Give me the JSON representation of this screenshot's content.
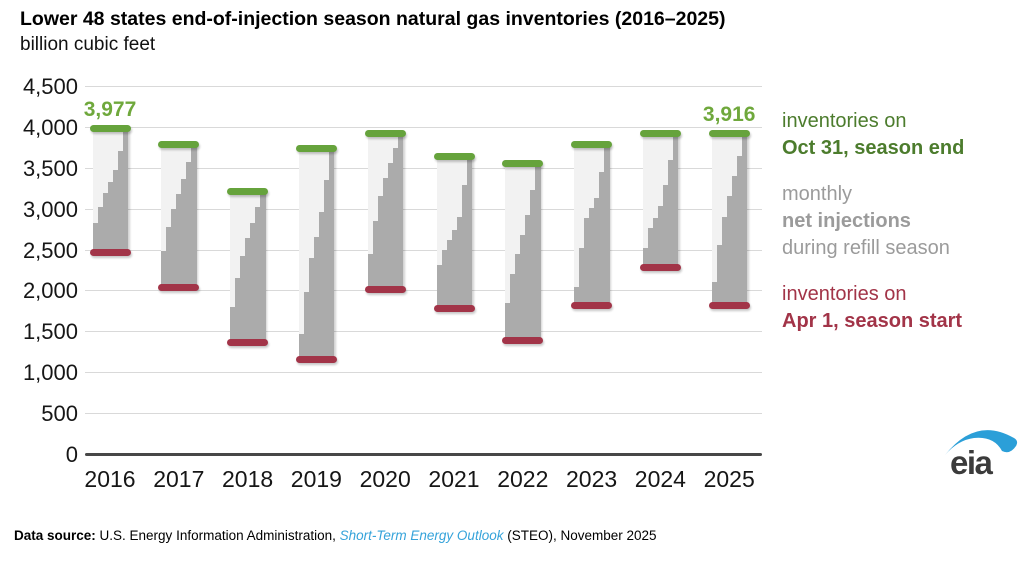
{
  "header": {
    "title": "Lower 48 states end-of-injection season natural gas inventories (2016–2025)",
    "subtitle": "billion cubic feet"
  },
  "chart_data": {
    "type": "bar",
    "title": "Lower 48 states end-of-injection season natural gas inventories (2016–2025)",
    "ylabel": "billion cubic feet",
    "ylim": [
      0,
      4500
    ],
    "ytick_labels": [
      "0",
      "500",
      "1,000",
      "1,500",
      "2,000",
      "2,500",
      "3,000",
      "3,500",
      "4,000",
      "4,500"
    ],
    "categories": [
      "2016",
      "2017",
      "2018",
      "2019",
      "2020",
      "2021",
      "2022",
      "2023",
      "2024",
      "2025"
    ],
    "series": [
      {
        "name": "inventories on Apr 1, season start",
        "color": "#a23448",
        "values": [
          2470,
          2040,
          1360,
          1160,
          2010,
          1780,
          1390,
          1820,
          2280,
          1810
        ]
      },
      {
        "name": "inventories on Oct 31, season end",
        "color": "#66a33c",
        "values": [
          3977,
          3790,
          3210,
          3740,
          3920,
          3640,
          3550,
          3790,
          3920,
          3916
        ]
      },
      {
        "name": "monthly net injections during refill season (cumulative month-end levels Apr–Oct)",
        "color": "#ababab",
        "values": [
          [
            2820,
            3025,
            3190,
            3330,
            3475,
            3700,
            3977
          ],
          [
            2480,
            2780,
            3000,
            3180,
            3360,
            3570,
            3790
          ],
          [
            1800,
            2150,
            2420,
            2640,
            2830,
            3020,
            3210
          ],
          [
            1470,
            1980,
            2400,
            2650,
            2960,
            3350,
            3740
          ],
          [
            2450,
            2850,
            3150,
            3380,
            3560,
            3740,
            3920
          ],
          [
            2310,
            2490,
            2615,
            2740,
            2900,
            3290,
            3640
          ],
          [
            1850,
            2200,
            2450,
            2680,
            2920,
            3230,
            3550
          ],
          [
            2045,
            2515,
            2885,
            3005,
            3130,
            3450,
            3790
          ],
          [
            2515,
            2760,
            2885,
            3030,
            3290,
            3600,
            3920
          ],
          [
            2100,
            2550,
            2900,
            3160,
            3400,
            3650,
            3916
          ]
        ]
      }
    ],
    "annotations": [
      {
        "category": "2016",
        "text": "3,977",
        "color": "#6fa83c"
      },
      {
        "category": "2025",
        "text": "3,916",
        "color": "#6fa83c"
      }
    ],
    "bar_bg_color": "#f2f2f2",
    "gridline_color": "#d9d9d9",
    "axis_color": "#474747",
    "grid": "horizontal-on"
  },
  "legend": {
    "end": {
      "line1": "inventories on",
      "line2": "Oct 31, season end",
      "color": "#4c7c2d"
    },
    "injections": {
      "line1": "monthly",
      "line2": "net injections",
      "line3": "during refill season",
      "color": "#9b9b9b"
    },
    "start": {
      "line1": "inventories on",
      "line2": "Apr 1, season start",
      "color": "#a23448"
    }
  },
  "footer": {
    "label": "Data source:",
    "text_before_link": " U.S. Energy Information Administration, ",
    "link": "Short-Term Energy Outlook",
    "text_after_link": " (STEO), November 2025",
    "link_color": "#35a3da"
  },
  "logo": {
    "text": "eia",
    "swoosh_color": "#2b9fd8"
  }
}
